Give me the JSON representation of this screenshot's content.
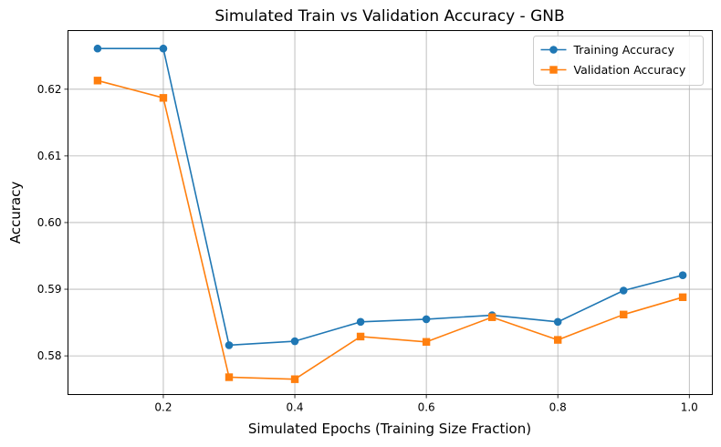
{
  "chart_data": {
    "type": "line",
    "title": "Simulated Train vs Validation Accuracy - GNB",
    "xlabel": "Simulated Epochs (Training Size Fraction)",
    "ylabel": "Accuracy",
    "xlim": [
      0.055,
      1.035
    ],
    "ylim": [
      0.5742,
      0.6288
    ],
    "xticks": [
      0.2,
      0.4,
      0.6,
      0.8,
      1.0
    ],
    "xtick_labels": [
      "0.2",
      "0.4",
      "0.6",
      "0.8",
      "1.0"
    ],
    "yticks": [
      0.58,
      0.59,
      0.6,
      0.61,
      0.62
    ],
    "ytick_labels": [
      "0.58",
      "0.59",
      "0.60",
      "0.61",
      "0.62"
    ],
    "grid": true,
    "legend_position": "top-right",
    "x": [
      0.1,
      0.2,
      0.3,
      0.4,
      0.5,
      0.6,
      0.7,
      0.8,
      0.9,
      0.99
    ],
    "series": [
      {
        "name": "Training Accuracy",
        "color": "#1f77b4",
        "marker": "circle",
        "values": [
          0.6261,
          0.6261,
          0.5816,
          0.5822,
          0.5851,
          0.5855,
          0.5861,
          0.5851,
          0.5898,
          0.5921
        ]
      },
      {
        "name": "Validation Accuracy",
        "color": "#ff7f0e",
        "marker": "square",
        "values": [
          0.6213,
          0.6187,
          0.5768,
          0.5765,
          0.5829,
          0.5821,
          0.5858,
          0.5824,
          0.5862,
          0.5888
        ]
      }
    ]
  }
}
